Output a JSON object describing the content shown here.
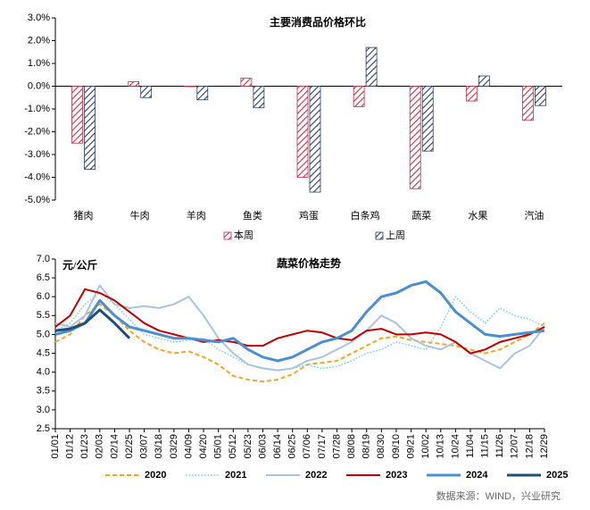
{
  "chart_data": [
    {
      "type": "bar",
      "title": "主要消费品价格环比",
      "categories": [
        "猪肉",
        "牛肉",
        "羊肉",
        "鱼类",
        "鸡蛋",
        "白条鸡",
        "蔬菜",
        "水果",
        "汽油"
      ],
      "series": [
        {
          "name": "本周",
          "color": "#c0304a",
          "values": [
            -2.5,
            0.2,
            0.0,
            0.35,
            -4.0,
            -0.9,
            -4.5,
            -0.65,
            -1.5
          ]
        },
        {
          "name": "上周",
          "color": "#2b3d5c",
          "values": [
            -3.65,
            -0.5,
            -0.6,
            -0.95,
            -4.65,
            1.7,
            -2.85,
            0.45,
            -0.85
          ]
        }
      ],
      "ylim": [
        -5,
        3
      ],
      "yticks": [
        {
          "value": 3,
          "label": "3.0%"
        },
        {
          "value": 2,
          "label": "2.0%"
        },
        {
          "value": 1,
          "label": "1.0%"
        },
        {
          "value": 0,
          "label": "0.0%"
        },
        {
          "value": -1,
          "label": "-1.0%"
        },
        {
          "value": -2,
          "label": "-2.0%"
        },
        {
          "value": -3,
          "label": "-3.0%"
        },
        {
          "value": -4,
          "label": "-4.0%"
        },
        {
          "value": -5,
          "label": "-5.0%"
        }
      ],
      "legend": "bottom"
    },
    {
      "type": "line",
      "title": "蔬菜价格走势",
      "y_label": "元/公斤",
      "categories": [
        "01/01",
        "01/12",
        "01/23",
        "02/03",
        "02/14",
        "02/25",
        "03/07",
        "03/18",
        "03/29",
        "04/09",
        "04/20",
        "05/01",
        "05/12",
        "05/23",
        "06/03",
        "06/14",
        "06/25",
        "07/06",
        "07/17",
        "07/28",
        "08/08",
        "08/19",
        "08/30",
        "09/10",
        "09/21",
        "10/02",
        "10/13",
        "10/24",
        "11/04",
        "11/15",
        "11/26",
        "12/07",
        "12/18",
        "12/29"
      ],
      "series": [
        {
          "name": "2020",
          "color": "#f5a623",
          "style": "dashed",
          "values": [
            4.8,
            5.0,
            5.5,
            5.8,
            5.5,
            5.1,
            4.8,
            4.6,
            4.5,
            4.55,
            4.4,
            4.2,
            3.9,
            3.8,
            3.75,
            3.8,
            3.95,
            4.2,
            4.25,
            4.3,
            4.5,
            4.7,
            4.9,
            4.95,
            4.85,
            4.8,
            4.75,
            4.7,
            4.6,
            4.5,
            4.6,
            4.8,
            5.0,
            5.3
          ]
        },
        {
          "name": "2021",
          "color": "#6dd3d0",
          "style": "dotted",
          "values": [
            5.1,
            5.3,
            5.8,
            6.1,
            5.8,
            5.4,
            5.0,
            4.9,
            4.8,
            4.85,
            4.9,
            4.6,
            4.4,
            4.2,
            4.1,
            4.05,
            4.1,
            4.2,
            4.1,
            4.15,
            4.3,
            4.5,
            4.6,
            4.8,
            4.7,
            4.6,
            5.2,
            6.0,
            5.6,
            5.3,
            5.7,
            5.5,
            5.4,
            5.2
          ]
        },
        {
          "name": "2022",
          "color": "#a9c4de",
          "style": "solid",
          "values": [
            5.3,
            5.2,
            5.5,
            6.3,
            5.8,
            5.7,
            5.75,
            5.7,
            5.8,
            6.0,
            5.5,
            4.9,
            4.5,
            4.2,
            4.1,
            4.05,
            4.1,
            4.3,
            4.4,
            4.6,
            4.8,
            5.1,
            5.5,
            5.3,
            4.9,
            4.7,
            4.6,
            4.8,
            4.5,
            4.3,
            4.1,
            4.5,
            4.7,
            5.2
          ]
        },
        {
          "name": "2023",
          "color": "#c00000",
          "style": "solid",
          "values": [
            5.2,
            5.5,
            6.2,
            6.1,
            5.9,
            5.6,
            5.3,
            5.1,
            5.0,
            4.9,
            4.8,
            4.85,
            4.8,
            4.7,
            4.7,
            4.9,
            5.0,
            5.1,
            5.05,
            4.9,
            4.85,
            5.1,
            5.15,
            5.0,
            5.0,
            5.05,
            5.0,
            4.8,
            4.5,
            4.6,
            4.8,
            4.9,
            5.0,
            5.2
          ]
        },
        {
          "name": "2024",
          "color": "#4a8fd4",
          "style": "thick",
          "values": [
            5.0,
            5.1,
            5.3,
            5.9,
            5.5,
            5.2,
            5.1,
            5.0,
            4.9,
            4.9,
            4.85,
            4.8,
            4.9,
            4.6,
            4.4,
            4.3,
            4.4,
            4.6,
            4.8,
            4.9,
            5.1,
            5.6,
            6.0,
            6.1,
            6.3,
            6.4,
            6.1,
            5.6,
            5.3,
            5.0,
            4.95,
            5.0,
            5.05,
            5.1
          ]
        },
        {
          "name": "2025",
          "color": "#1f4e79",
          "style": "thick",
          "values": [
            5.1,
            5.15,
            5.3,
            5.65,
            5.3,
            4.9,
            null,
            null,
            null,
            null,
            null,
            null,
            null,
            null,
            null,
            null,
            null,
            null,
            null,
            null,
            null,
            null,
            null,
            null,
            null,
            null,
            null,
            null,
            null,
            null,
            null,
            null,
            null,
            null
          ]
        }
      ],
      "ylim": [
        2.5,
        7.0
      ],
      "yticks": [
        2.5,
        {
          "value": 3,
          "label": "3.0"
        },
        3.5,
        {
          "value": 4,
          "label": "4.0"
        },
        4.5,
        {
          "value": 5,
          "label": "5.0"
        },
        5.5,
        {
          "value": 6,
          "label": "6.0"
        },
        6.5,
        {
          "value": 7,
          "label": "7.0"
        }
      ],
      "legend": "bottom"
    }
  ],
  "source": "数据来源：WIND，兴业研究"
}
